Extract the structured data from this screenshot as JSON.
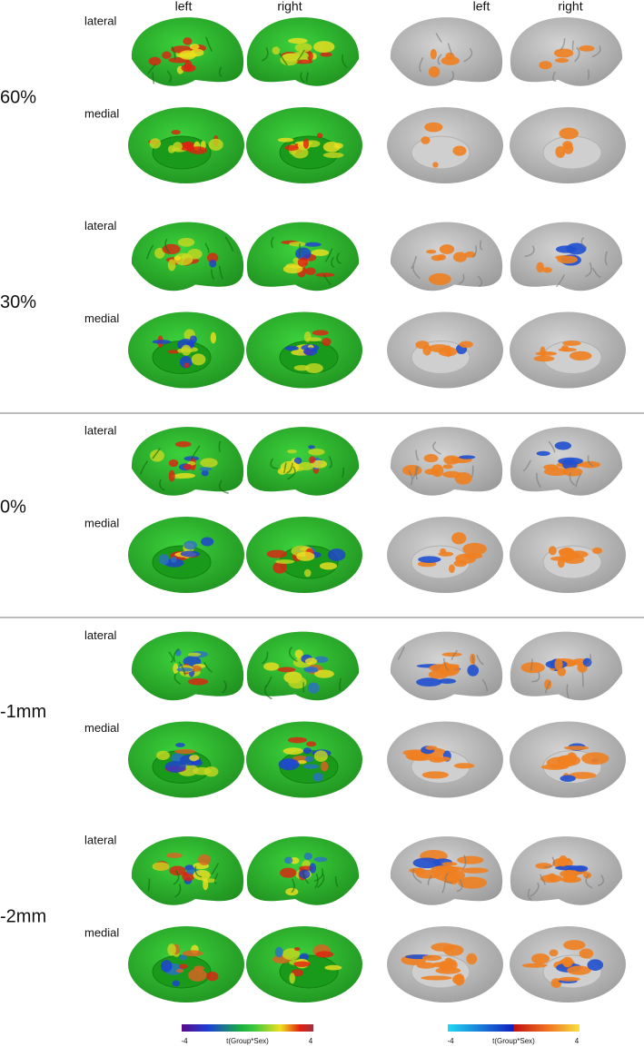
{
  "columns": [
    "left",
    "right",
    "left",
    "right"
  ],
  "rows": [
    {
      "label": "60%",
      "views": [
        "lateral",
        "medial"
      ]
    },
    {
      "label": "30%",
      "views": [
        "lateral",
        "medial"
      ]
    },
    {
      "label": "0%",
      "views": [
        "lateral",
        "medial"
      ]
    },
    {
      "label": "-1mm",
      "views": [
        "lateral",
        "medial"
      ]
    },
    {
      "label": "-2mm",
      "views": [
        "lateral",
        "medial"
      ]
    }
  ],
  "colorbars": [
    {
      "min": -4,
      "label": "t(Group*Sex)",
      "max": 4
    },
    {
      "min": -4,
      "label": "t(Group*Sex)",
      "max": 4
    }
  ]
}
